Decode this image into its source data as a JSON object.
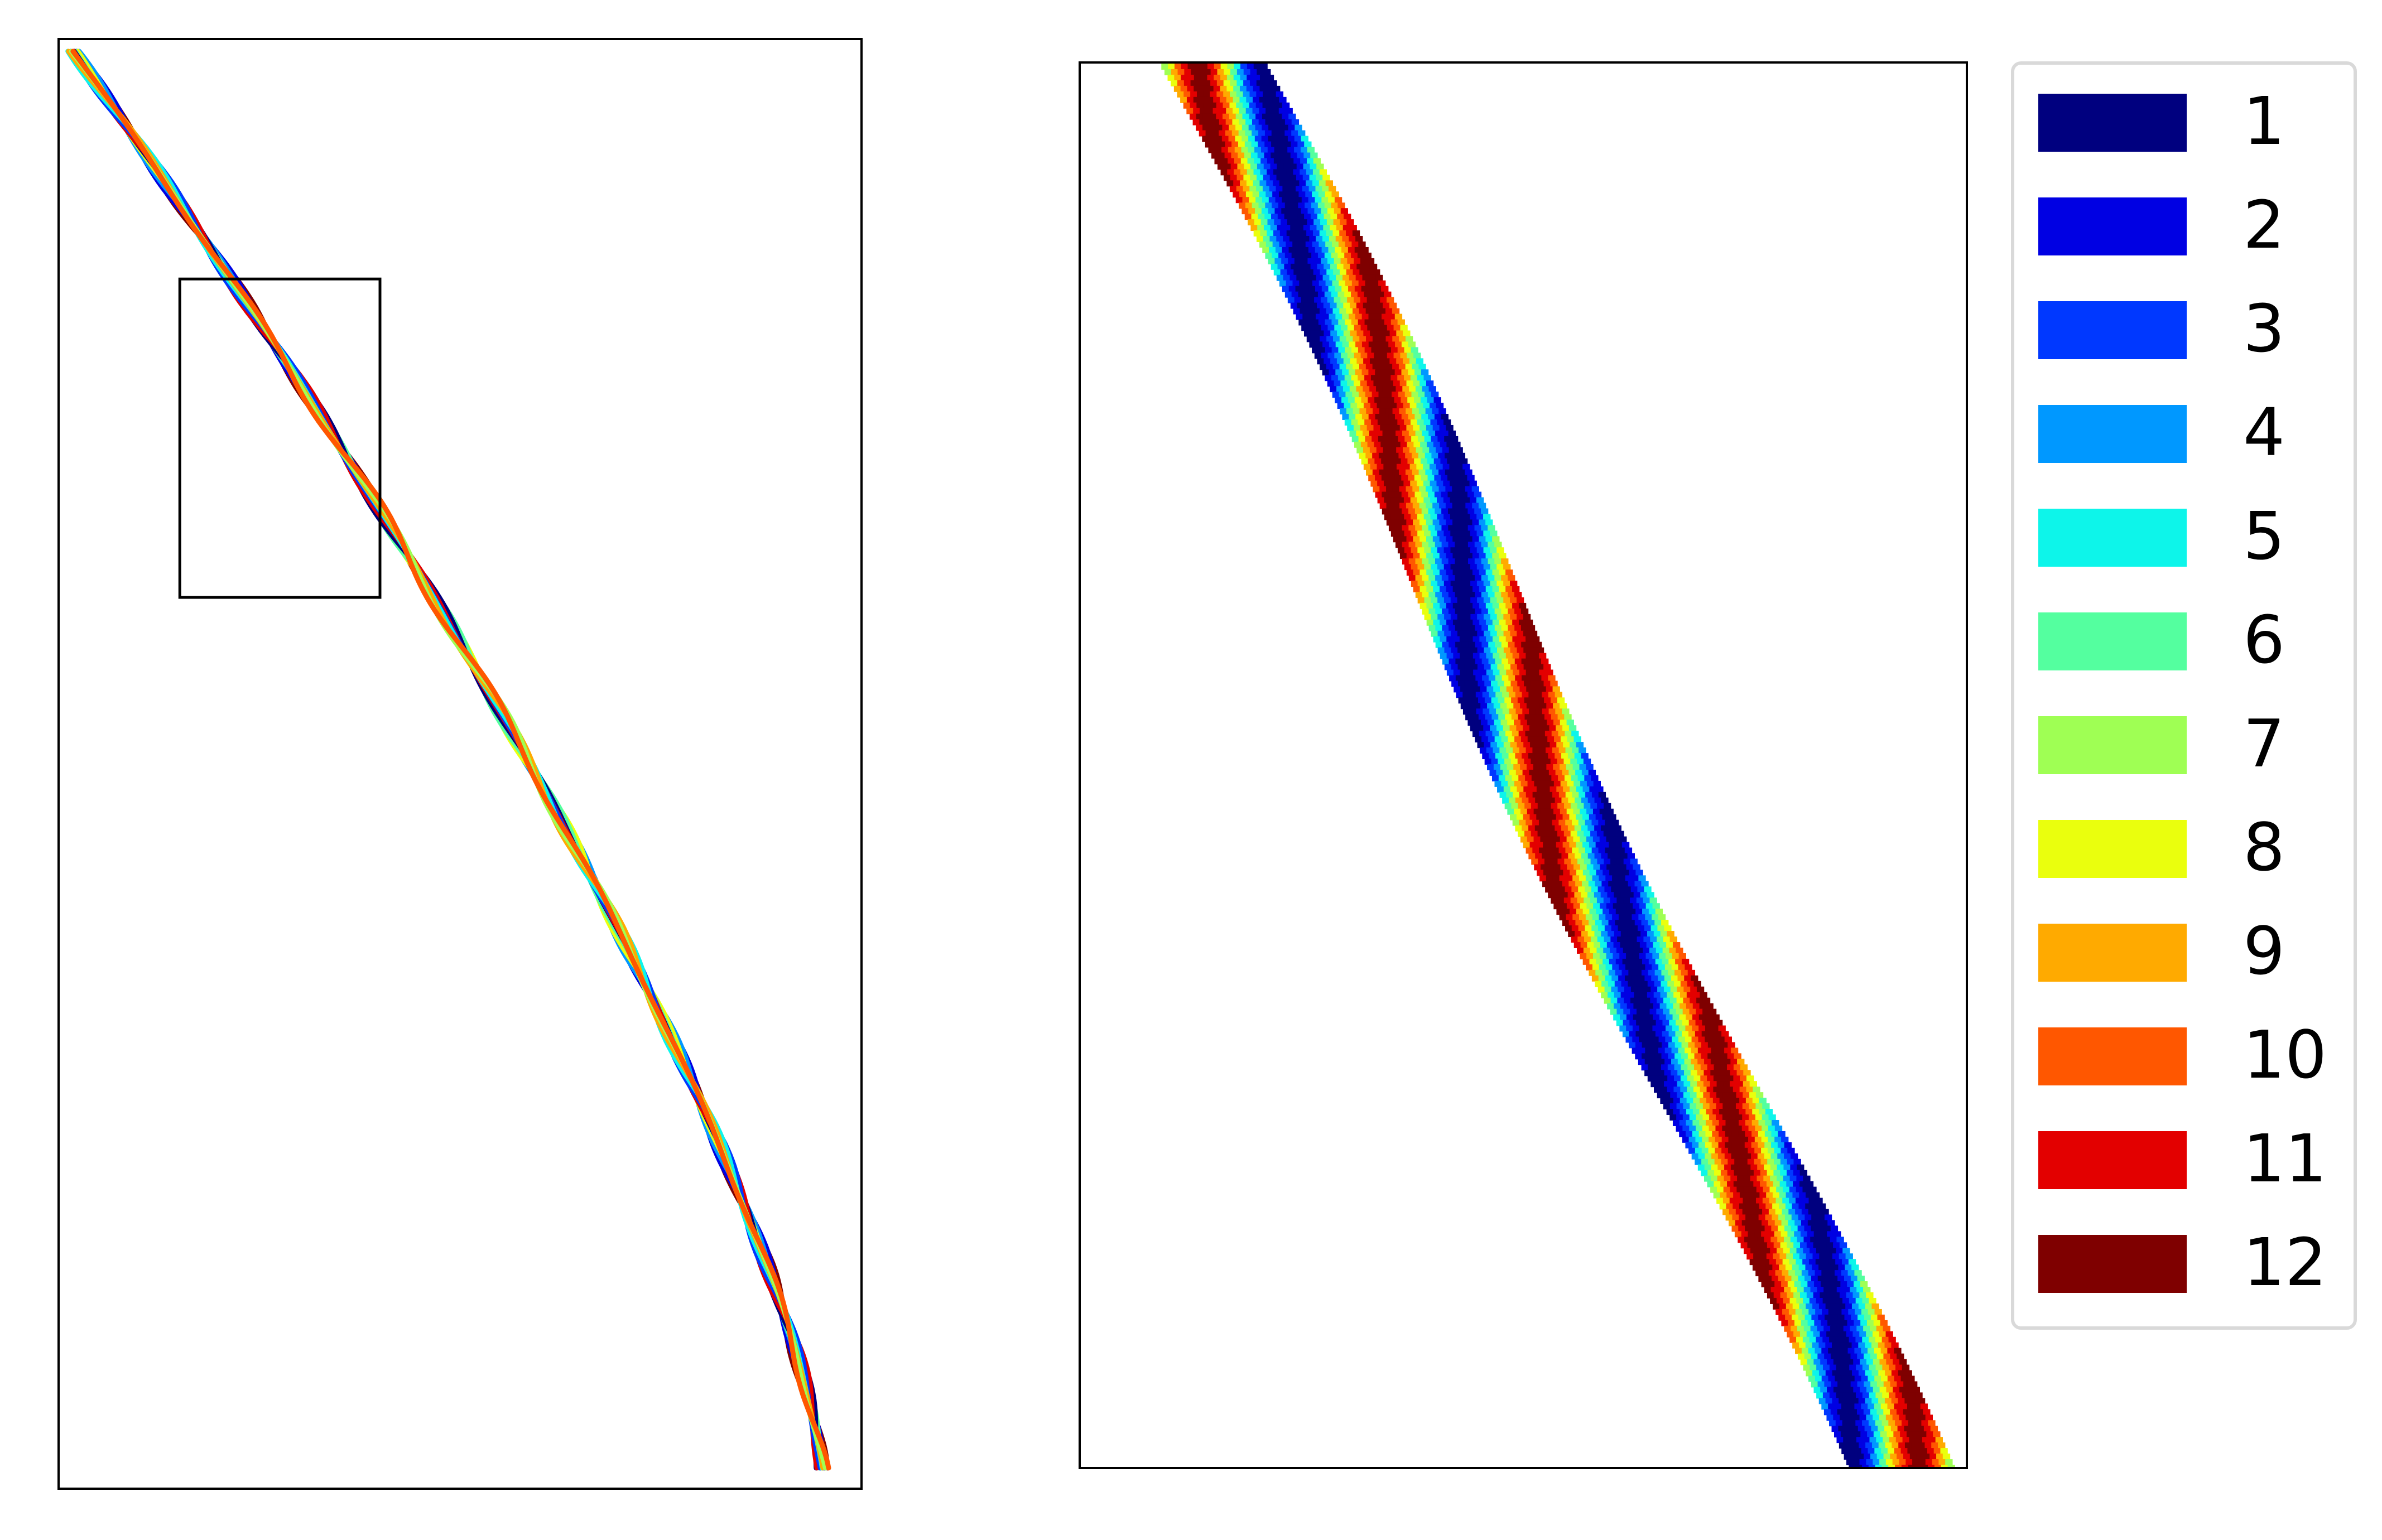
{
  "figure": {
    "overview_panel": {
      "xlim": [
        0,
        1
      ],
      "ylim": [
        0,
        1
      ],
      "zoom_region": {
        "x0": 0.15,
        "x1": 0.4,
        "y0": 0.615,
        "y1": 0.835
      }
    },
    "legend": {
      "placement": "right",
      "items": [
        {
          "label": "1",
          "color": "#00007f"
        },
        {
          "label": "2",
          "color": "#0000e3"
        },
        {
          "label": "3",
          "color": "#0038ff"
        },
        {
          "label": "4",
          "color": "#0098ff"
        },
        {
          "label": "5",
          "color": "#0df5ea"
        },
        {
          "label": "6",
          "color": "#54ff9f"
        },
        {
          "label": "7",
          "color": "#9fff54"
        },
        {
          "label": "8",
          "color": "#eaff0d"
        },
        {
          "label": "9",
          "color": "#ffaa00"
        },
        {
          "label": "10",
          "color": "#ff5700"
        },
        {
          "label": "11",
          "color": "#e30000"
        },
        {
          "label": "12",
          "color": "#7f0000"
        }
      ]
    }
  }
}
